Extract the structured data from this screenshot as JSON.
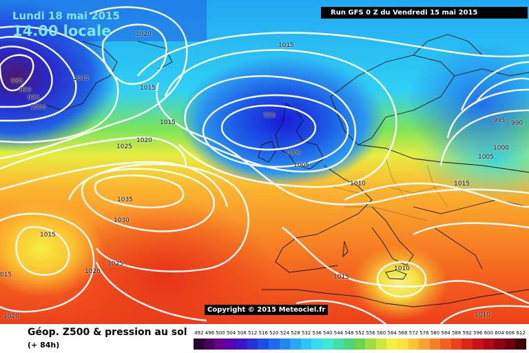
{
  "header": {
    "date": "Lundi 18 mai 2015",
    "time": "14.00 locale",
    "run": "Run GFS 0 Z du Vendredi 15 mai 2015"
  },
  "copyright": "Copyright © 2015 Meteociel.fr",
  "footer": {
    "title": "Géop. Z500 & pression au sol",
    "forecast_hour": "(+ 84h)"
  },
  "isobar_labels": [
    {
      "text": "985"
    },
    {
      "text": "990"
    },
    {
      "text": "995"
    },
    {
      "text": "1000"
    },
    {
      "text": "1040"
    },
    {
      "text": "1020"
    },
    {
      "text": "1015"
    },
    {
      "text": "1015"
    },
    {
      "text": "1015"
    },
    {
      "text": "1020"
    },
    {
      "text": "1025"
    },
    {
      "text": "1035"
    },
    {
      "text": "1030"
    },
    {
      "text": "1015"
    },
    {
      "text": "1025"
    },
    {
      "text": "1020"
    },
    {
      "text": "015"
    },
    {
      "text": "1020"
    },
    {
      "text": "995"
    },
    {
      "text": "1000"
    },
    {
      "text": "1005"
    },
    {
      "text": "1010"
    },
    {
      "text": "1015"
    },
    {
      "text": "1010"
    },
    {
      "text": "1015"
    },
    {
      "text": "995"
    },
    {
      "text": "990"
    },
    {
      "text": "1000"
    },
    {
      "text": "1005"
    },
    {
      "text": "1010"
    }
  ],
  "scale": {
    "labels": [
      "492",
      "496",
      "500",
      "504",
      "508",
      "512",
      "516",
      "520",
      "524",
      "528",
      "532",
      "536",
      "540",
      "544",
      "548",
      "552",
      "556",
      "560",
      "564",
      "568",
      "572",
      "576",
      "580",
      "584",
      "588",
      "592",
      "596",
      "600",
      "604",
      "608",
      "612"
    ],
    "colors": [
      "#2a0036",
      "#4a0062",
      "#6a0090",
      "#5a00b4",
      "#3a16c8",
      "#2434d8",
      "#1a4ee6",
      "#1c6af0",
      "#2088f4",
      "#26a6f6",
      "#2ec4f8",
      "#36dcf4",
      "#3ce8d8",
      "#3ee0a8",
      "#48d878",
      "#68d848",
      "#9ae040",
      "#cce83c",
      "#f4ee40",
      "#fce23a",
      "#fcc432",
      "#fca22a",
      "#f88024",
      "#f4601e",
      "#ec401a",
      "#e02418",
      "#cc1016",
      "#b00814",
      "#900412",
      "#6c0210",
      "#400008"
    ]
  }
}
